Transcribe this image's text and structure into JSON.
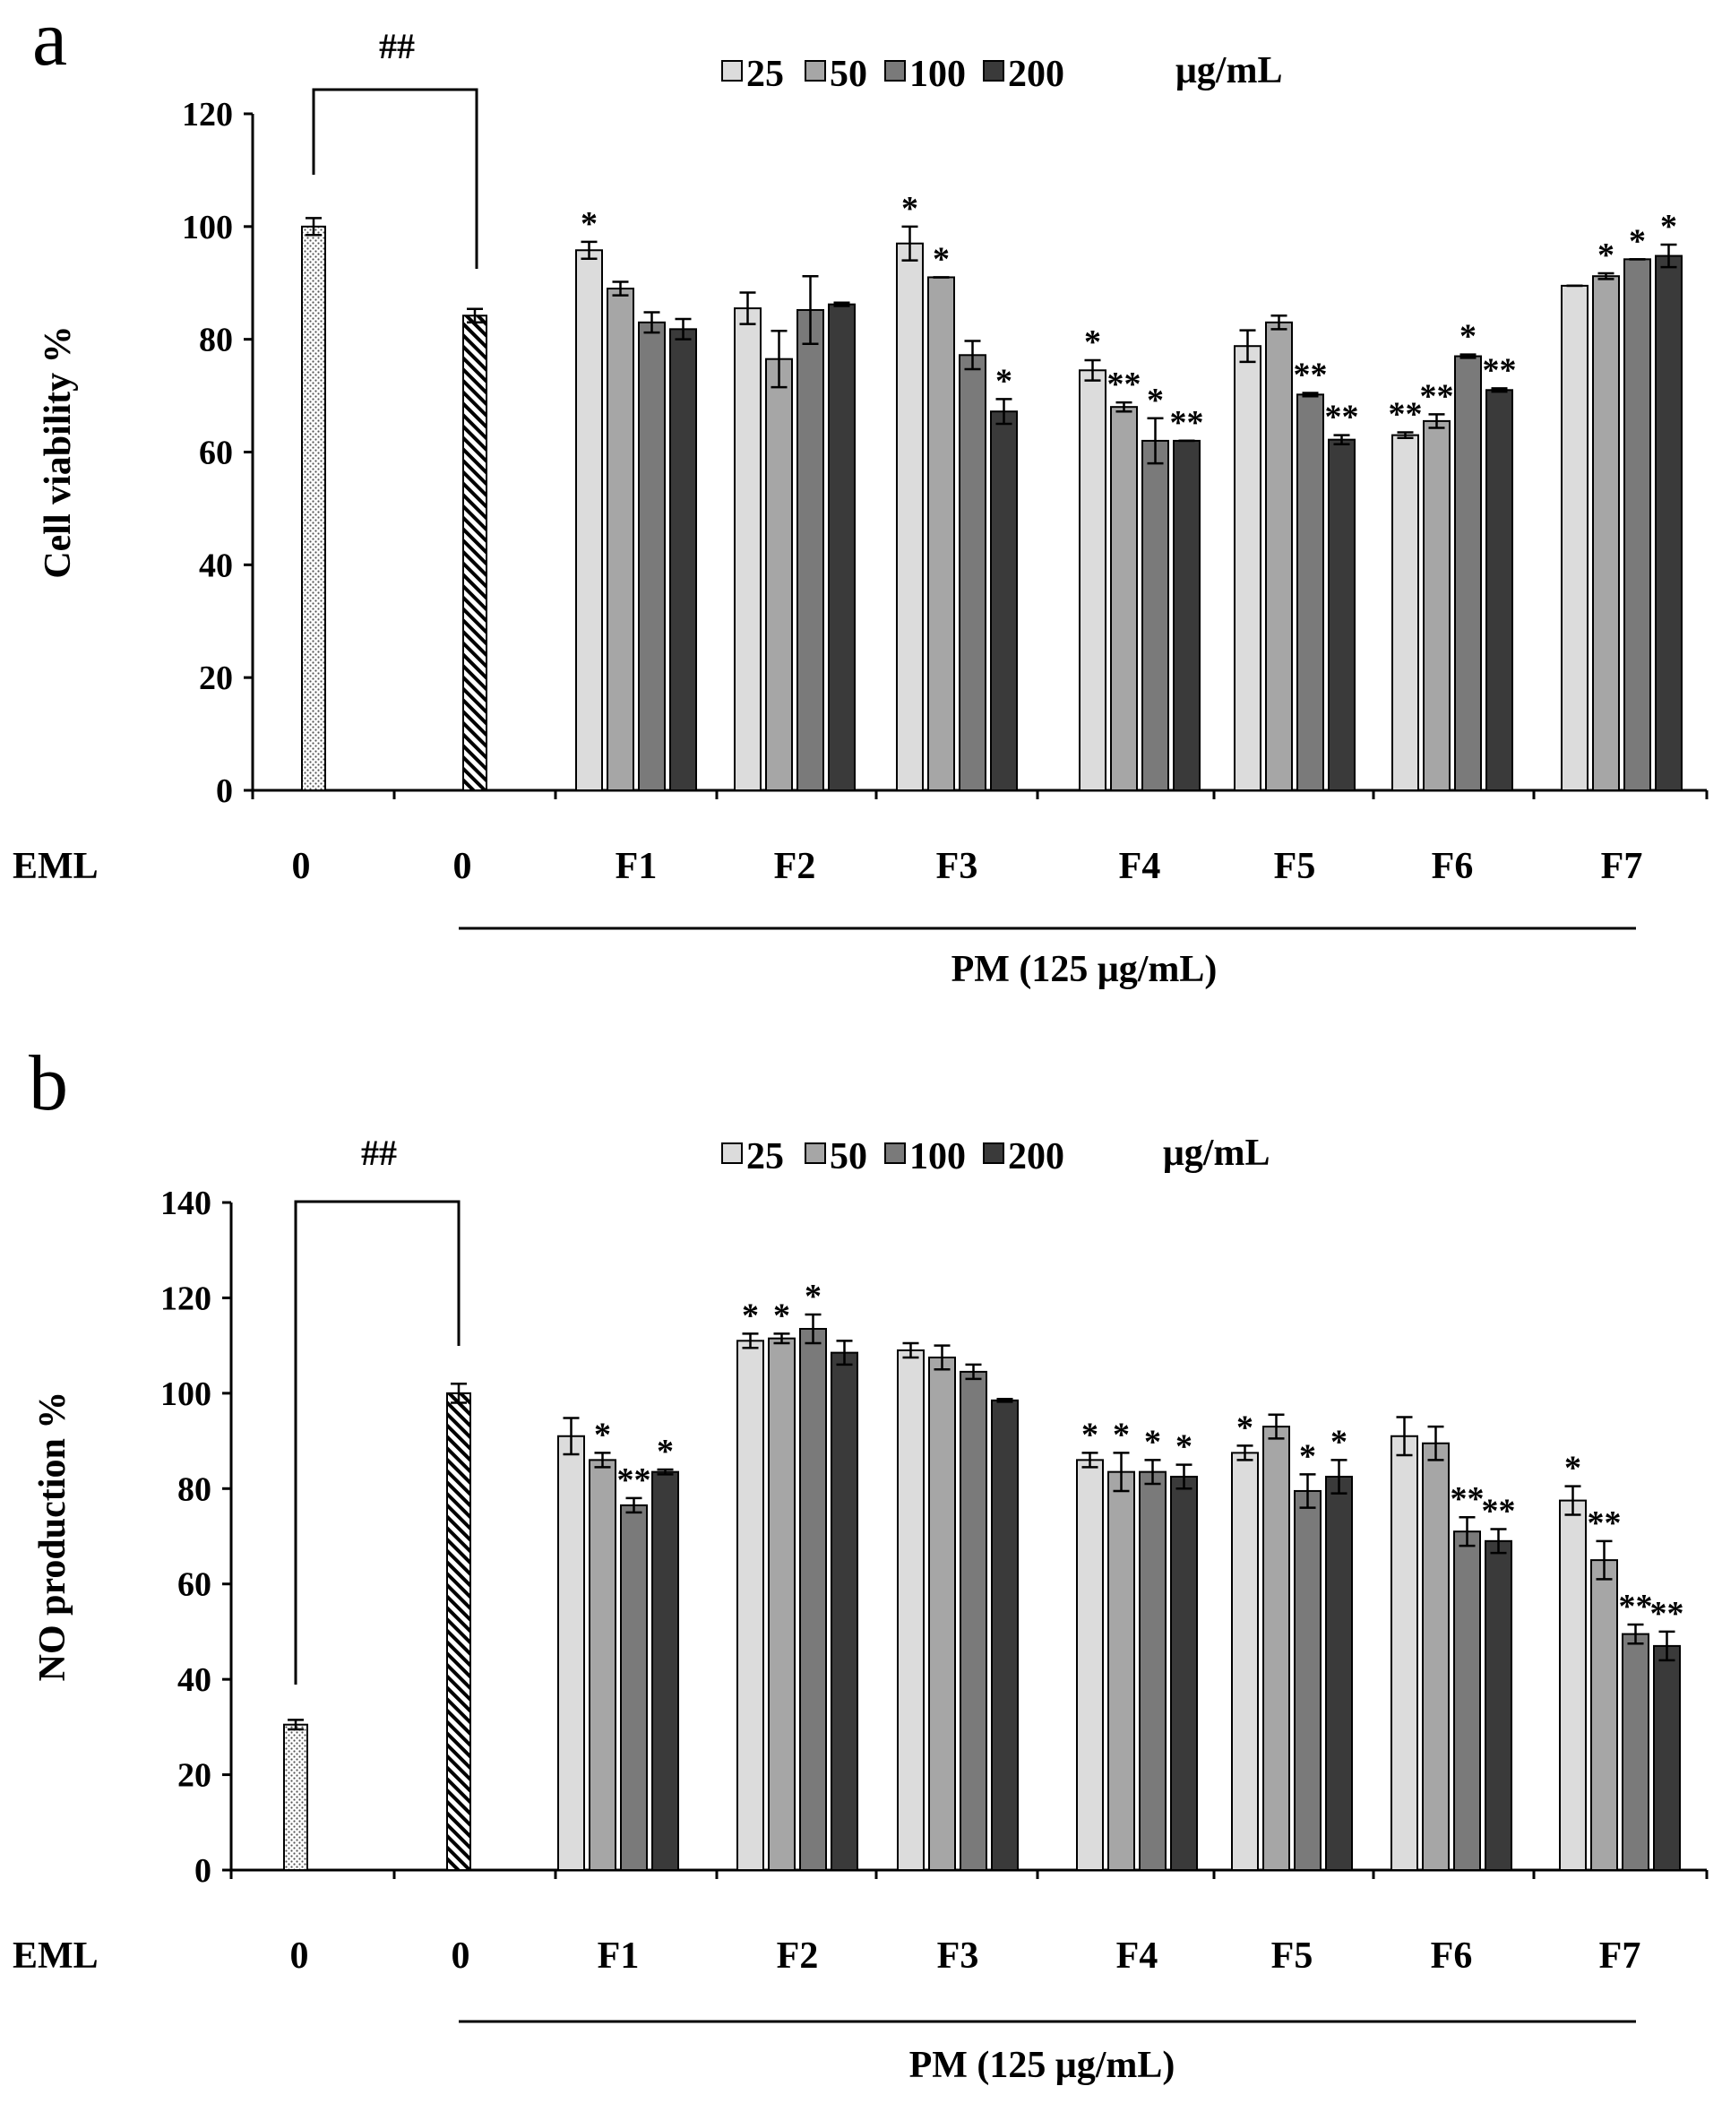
{
  "colors": {
    "c25": "#dcdcdc",
    "c50": "#a6a6a6",
    "c100": "#7a7a7a",
    "c200": "#3a3a3a"
  },
  "chart_data": [
    {
      "panel": "a",
      "type": "bar",
      "ylabel": "Cell viability %",
      "ylim": [
        0,
        120
      ],
      "yticks": [
        0,
        20,
        40,
        60,
        80,
        100,
        120
      ],
      "row_label": "EML",
      "group_label": "PM (125 μg/mL)",
      "control_marker": "##",
      "legend": {
        "items": [
          "25",
          "50",
          "100",
          "200"
        ],
        "unit": "μg/mL"
      },
      "controls": [
        {
          "category": "0",
          "value": 100.0,
          "err": 1.5,
          "pattern": "dotted"
        },
        {
          "category": "0",
          "value": 84.2,
          "err": 1.2,
          "pattern": "hatched"
        }
      ],
      "categories": [
        "F1",
        "F2",
        "F3",
        "F4",
        "F5",
        "F6",
        "F7"
      ],
      "series": [
        {
          "name": "25",
          "values": [
            95.8,
            85.5,
            97.0,
            74.5,
            78.8,
            63.0,
            89.5
          ],
          "errors": [
            1.5,
            2.8,
            3.0,
            1.8,
            2.8,
            0.5,
            0
          ],
          "marks": [
            "*",
            "",
            "*",
            "*",
            "",
            "**",
            ""
          ]
        },
        {
          "name": "50",
          "values": [
            89.0,
            76.5,
            91.0,
            68.0,
            83.0,
            65.5,
            91.2
          ],
          "errors": [
            1.2,
            5.0,
            0,
            0.8,
            1.2,
            1.2,
            0.5
          ],
          "marks": [
            "",
            "",
            "*",
            "**",
            "",
            "**",
            "*"
          ]
        },
        {
          "name": "100",
          "values": [
            83.0,
            85.2,
            77.2,
            62.0,
            70.2,
            77.0,
            94.2
          ],
          "errors": [
            1.8,
            6.0,
            2.5,
            4.0,
            0.3,
            0.3,
            0
          ],
          "marks": [
            "",
            "",
            "",
            "*",
            "**",
            "*",
            "*"
          ]
        },
        {
          "name": "200",
          "values": [
            81.8,
            86.2,
            67.2,
            62.0,
            62.2,
            71.0,
            94.8
          ],
          "errors": [
            1.8,
            0.3,
            2.2,
            0,
            0.8,
            0.3,
            2.0
          ],
          "marks": [
            "",
            "",
            "*",
            "**",
            "**",
            "**",
            "*"
          ]
        }
      ]
    },
    {
      "panel": "b",
      "type": "bar",
      "ylabel": "NO production %",
      "ylim": [
        0,
        140
      ],
      "yticks": [
        0,
        20,
        40,
        60,
        80,
        100,
        120,
        140
      ],
      "row_label": "EML",
      "group_label": "PM (125 μg/mL)",
      "control_marker": "##",
      "legend": {
        "items": [
          "25",
          "50",
          "100",
          "200"
        ],
        "unit": "μg/mL"
      },
      "controls": [
        {
          "category": "0",
          "value": 30.5,
          "err": 1.0,
          "pattern": "dotted"
        },
        {
          "category": "0",
          "value": 100.0,
          "err": 2.0,
          "pattern": "hatched"
        }
      ],
      "categories": [
        "F1",
        "F2",
        "F3",
        "F4",
        "F5",
        "F6",
        "F7"
      ],
      "series": [
        {
          "name": "25",
          "values": [
            91.0,
            111.0,
            109.0,
            86.0,
            87.5,
            91.0,
            77.5
          ],
          "errors": [
            3.8,
            1.5,
            1.5,
            1.5,
            1.5,
            4.0,
            3.0
          ],
          "marks": [
            "",
            "*",
            "",
            "*",
            "*",
            "",
            "*"
          ]
        },
        {
          "name": "50",
          "values": [
            86.0,
            111.5,
            107.5,
            83.5,
            93.0,
            89.5,
            65.0
          ],
          "errors": [
            1.5,
            1.0,
            2.5,
            4.0,
            2.5,
            3.5,
            4.0
          ],
          "marks": [
            "*",
            "*",
            "",
            "*",
            "",
            "",
            "**"
          ]
        },
        {
          "name": "100",
          "values": [
            76.5,
            113.5,
            104.5,
            83.5,
            79.5,
            71.0,
            49.5
          ],
          "errors": [
            1.5,
            3.0,
            1.5,
            2.5,
            3.5,
            3.0,
            2.0
          ],
          "marks": [
            "**",
            "*",
            "",
            "*",
            "*",
            "**",
            "**"
          ]
        },
        {
          "name": "200",
          "values": [
            83.5,
            108.5,
            98.5,
            82.5,
            82.5,
            69.0,
            47.0
          ],
          "errors": [
            0.5,
            2.5,
            0.3,
            2.5,
            3.5,
            2.5,
            3.0
          ],
          "marks": [
            "*",
            "",
            "",
            "*",
            "*",
            "**",
            "**"
          ]
        }
      ]
    }
  ]
}
